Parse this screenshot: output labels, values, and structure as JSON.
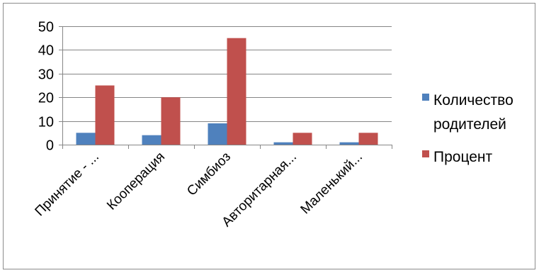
{
  "chart_data": {
    "type": "bar",
    "categories": [
      "Принятие - ...",
      "Кооперация",
      "Симбиоз",
      "Авторитарная...",
      "Маленький..."
    ],
    "series": [
      {
        "name": "Количество родителей",
        "values": [
          5,
          4,
          9,
          1,
          1
        ],
        "color": "#4f81bd"
      },
      {
        "name": "Процент",
        "values": [
          25,
          20,
          45,
          5,
          5
        ],
        "color": "#c0504d"
      }
    ],
    "ylim": [
      0,
      50
    ],
    "yticks": [
      0,
      10,
      20,
      30,
      40,
      50
    ],
    "grid": true,
    "legend_position": "right",
    "legend": {
      "items": [
        {
          "lines": [
            "Количество",
            "родителей"
          ],
          "color": "#4f81bd"
        },
        {
          "lines": [
            "Процент"
          ],
          "color": "#c0504d"
        }
      ]
    }
  }
}
